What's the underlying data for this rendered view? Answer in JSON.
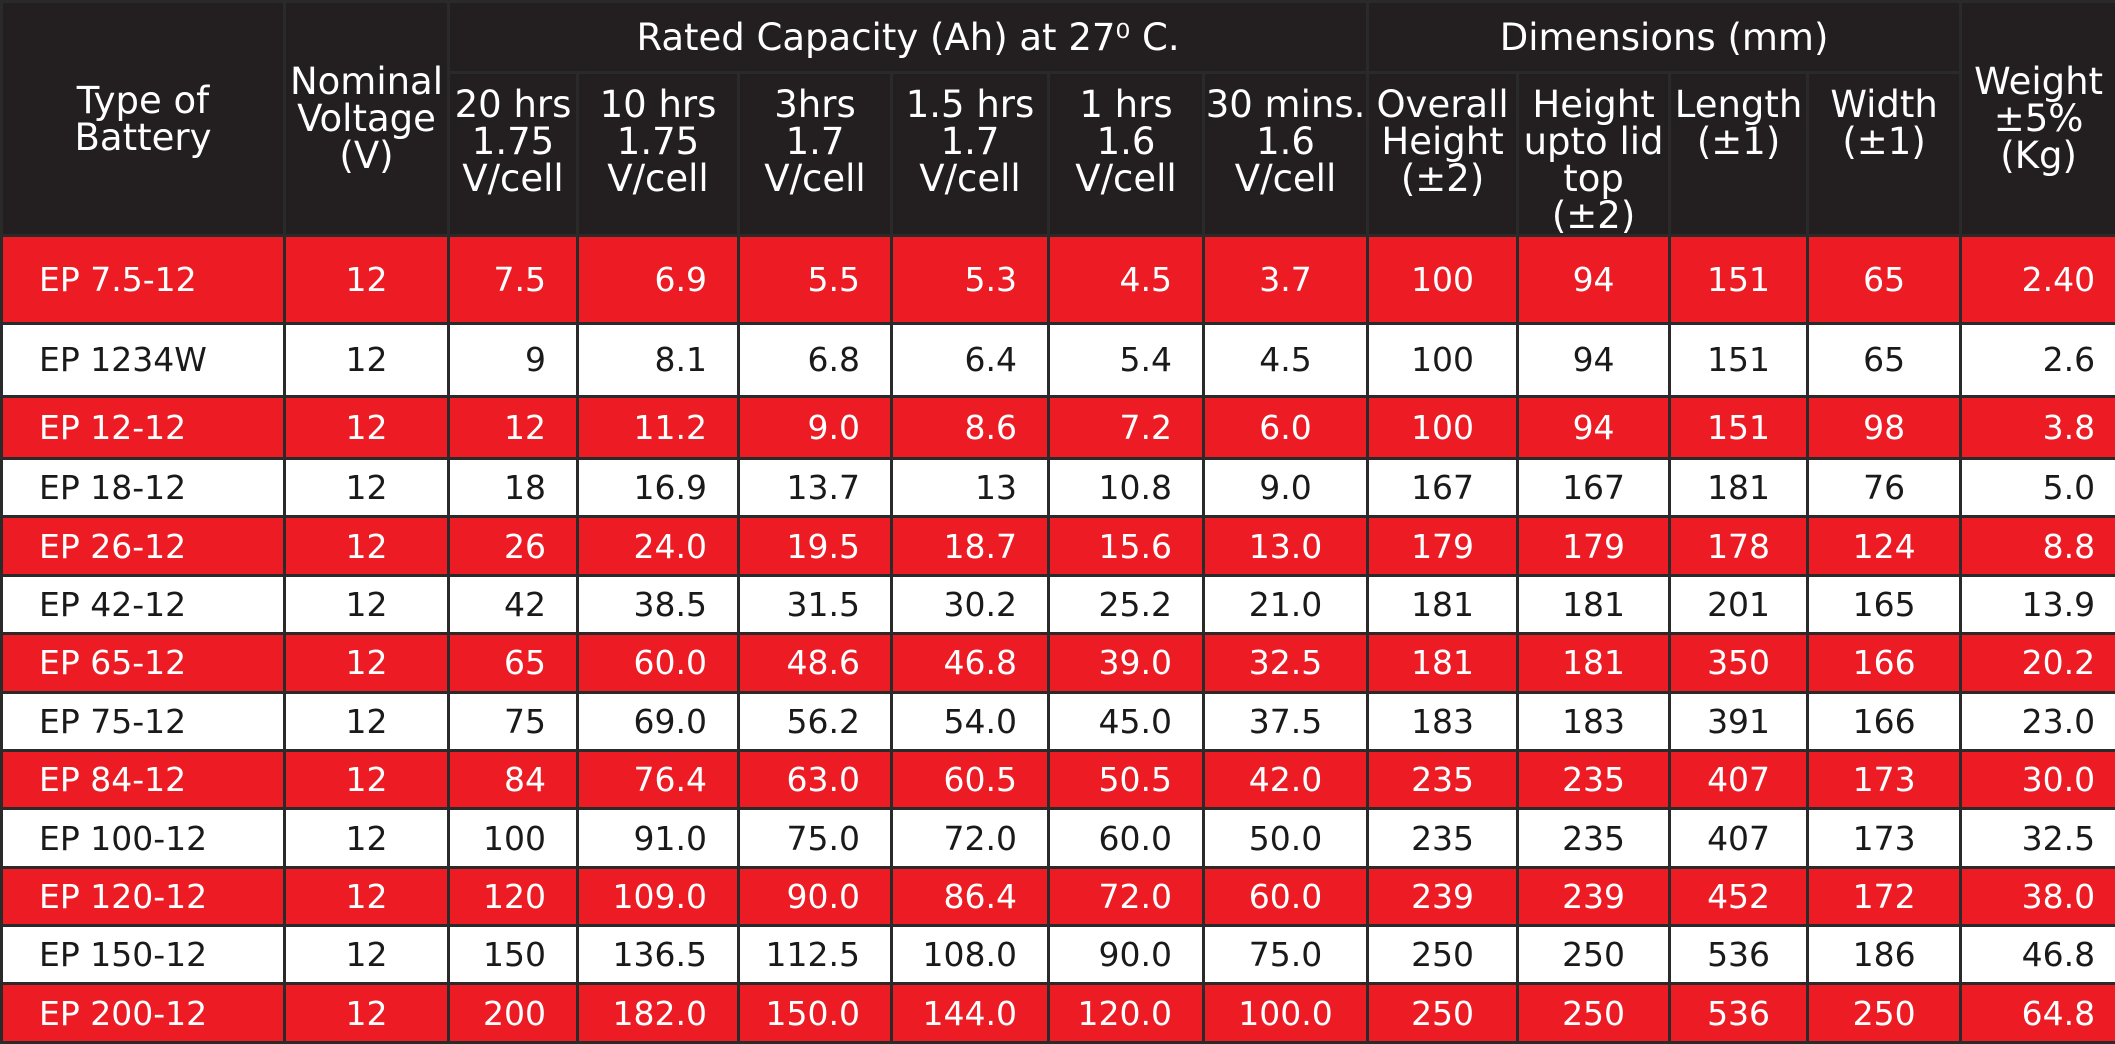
{
  "headers": {
    "type": "Type of\nBattery",
    "voltage": "Nominal\nVoltage\n(V)",
    "capacity_group": "Rated Capacity (Ah) at 27⁰ C.",
    "dimensions_group": "Dimensions (mm)",
    "weight": "Weight\n±5%\n(Kg)",
    "capacity_cols": [
      "20 hrs\n1.75\nV/cell",
      "10 hrs\n1.75\nV/cell",
      "3hrs\n1.7\nV/cell",
      "1.5 hrs\n1.7\nV/cell",
      "1 hrs\n1.6\nV/cell",
      "30 mins.\n1.6\nV/cell"
    ],
    "dimension_cols": [
      "Overall\nHeight\n(±2)",
      "Height\nupto lid\ntop (±2)",
      "Length\n(±1)",
      "Width\n(±1)"
    ]
  },
  "rows": [
    [
      "EP 7.5-12",
      "12",
      "7.5",
      "6.9",
      "5.5",
      "5.3",
      "4.5",
      "3.7",
      "100",
      "94",
      "151",
      "65",
      "2.40"
    ],
    [
      "EP 1234W",
      "12",
      "9",
      "8.1",
      "6.8",
      "6.4",
      "5.4",
      "4.5",
      "100",
      "94",
      "151",
      "65",
      "2.6"
    ],
    [
      "EP 12-12",
      "12",
      "12",
      "11.2",
      "9.0",
      "8.6",
      "7.2",
      "6.0",
      "100",
      "94",
      "151",
      "98",
      "3.8"
    ],
    [
      "EP 18-12",
      "12",
      "18",
      "16.9",
      "13.7",
      "13",
      "10.8",
      "9.0",
      "167",
      "167",
      "181",
      "76",
      "5.0"
    ],
    [
      "EP  26-12",
      "12",
      "26",
      "24.0",
      "19.5",
      "18.7",
      "15.6",
      "13.0",
      "179",
      "179",
      "178",
      "124",
      "8.8"
    ],
    [
      "EP 42-12",
      "12",
      "42",
      "38.5",
      "31.5",
      "30.2",
      "25.2",
      "21.0",
      "181",
      "181",
      "201",
      "165",
      "13.9"
    ],
    [
      "EP 65-12",
      "12",
      "65",
      "60.0",
      "48.6",
      "46.8",
      "39.0",
      "32.5",
      "181",
      "181",
      "350",
      "166",
      "20.2"
    ],
    [
      "EP 75-12",
      "12",
      "75",
      "69.0",
      "56.2",
      "54.0",
      "45.0",
      "37.5",
      "183",
      "183",
      "391",
      "166",
      "23.0"
    ],
    [
      "EP 84-12",
      "12",
      "84",
      "76.4",
      "63.0",
      "60.5",
      "50.5",
      "42.0",
      "235",
      "235",
      "407",
      "173",
      "30.0"
    ],
    [
      "EP 100-12",
      "12",
      "100",
      "91.0",
      "75.0",
      "72.0",
      "60.0",
      "50.0",
      "235",
      "235",
      "407",
      "173",
      "32.5"
    ],
    [
      "EP 120-12",
      "12",
      "120",
      "109.0",
      "90.0",
      "86.4",
      "72.0",
      "60.0",
      "239",
      "239",
      "452",
      "172",
      "38.0"
    ],
    [
      "EP 150-12",
      "12",
      "150",
      "136.5",
      "112.5",
      "108.0",
      "90.0",
      "75.0",
      "250",
      "250",
      "536",
      "186",
      "46.8"
    ],
    [
      "EP 200-12",
      "12",
      "200",
      "182.0",
      "150.0",
      "144.0",
      "120.0",
      "100.0",
      "250",
      "250",
      "536",
      "250",
      "64.8"
    ]
  ],
  "colors": {
    "header_bg": "#231f20",
    "red_row": "#ed1c24",
    "white_row": "#ffffff"
  }
}
